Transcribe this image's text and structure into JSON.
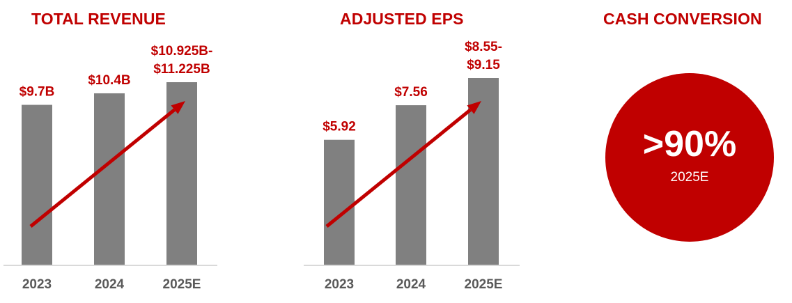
{
  "colors": {
    "accent": "#c00000",
    "bar": "#808080",
    "tick_text": "#595959",
    "baseline": "#d9d9d9"
  },
  "chart_data": [
    {
      "type": "bar",
      "title": "TOTAL REVENUE",
      "categories": [
        "2023",
        "2024",
        "2025E"
      ],
      "values": [
        9.7,
        10.4,
        11.075
      ],
      "value_labels": [
        [
          "$9.7B"
        ],
        [
          "$10.4B"
        ],
        [
          "$10.925B-",
          "$11.225B"
        ]
      ],
      "range_2025E": [
        10.925,
        11.225
      ],
      "units": "$B",
      "trend_arrow": true
    },
    {
      "type": "bar",
      "title": "ADJUSTED EPS",
      "categories": [
        "2023",
        "2024",
        "2025E"
      ],
      "values": [
        5.92,
        7.56,
        8.85
      ],
      "value_labels": [
        [
          "$5.92"
        ],
        [
          "$7.56"
        ],
        [
          "$8.55-",
          "$9.15"
        ]
      ],
      "range_2025E": [
        8.55,
        9.15
      ],
      "units": "$",
      "trend_arrow": true
    }
  ],
  "cash_conversion": {
    "title": "CASH CONVERSION",
    "value": ">90%",
    "period": "2025E"
  }
}
